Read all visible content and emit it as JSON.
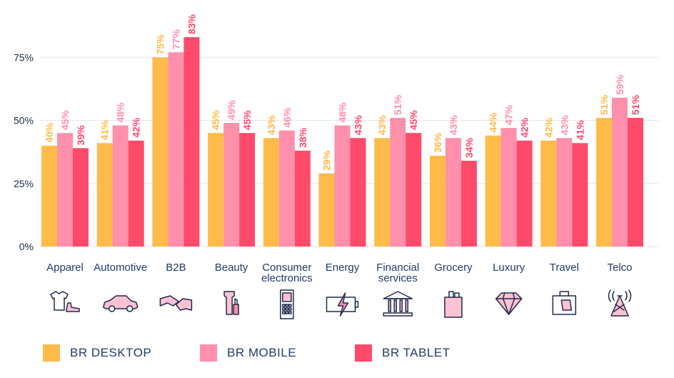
{
  "chart_data": {
    "type": "bar",
    "title": "",
    "xlabel": "",
    "ylabel": "",
    "ylim": [
      0,
      90
    ],
    "yticks": [
      0,
      25,
      50,
      75
    ],
    "ytick_labels": [
      "0%",
      "25%",
      "50%",
      "75%"
    ],
    "grid": true,
    "legend_position": "bottom",
    "categories": [
      "Apparel",
      "Automotive",
      "B2B",
      "Beauty",
      "Consumer electronics",
      "Energy",
      "Financial services",
      "Grocery",
      "Luxury",
      "Travel",
      "Telco"
    ],
    "category_lines": [
      [
        "Apparel"
      ],
      [
        "Automotive"
      ],
      [
        "B2B"
      ],
      [
        "Beauty"
      ],
      [
        "Consumer",
        "electronics"
      ],
      [
        "Energy"
      ],
      [
        "Financial",
        "services"
      ],
      [
        "Grocery"
      ],
      [
        "Luxury"
      ],
      [
        "Travel"
      ],
      [
        "Telco"
      ]
    ],
    "category_icons": [
      "apparel-icon",
      "car-icon",
      "handshake-icon",
      "cosmetics-icon",
      "phone-icon",
      "battery-icon",
      "bank-icon",
      "grocery-bag-icon",
      "diamond-icon",
      "suitcase-icon",
      "antenna-icon"
    ],
    "series": [
      {
        "name": "BR DESKTOP",
        "color": "#FFBB4A",
        "values": [
          40,
          41,
          75,
          45,
          43,
          29,
          43,
          36,
          44,
          42,
          51
        ],
        "labels": [
          "40%",
          "41%",
          "75%",
          "45%",
          "43%",
          "29%",
          "43%",
          "36%",
          "44%",
          "42%",
          "51%"
        ]
      },
      {
        "name": "BR MOBILE",
        "color": "#FF8FAB",
        "values": [
          45,
          48,
          77,
          49,
          46,
          48,
          51,
          43,
          47,
          43,
          59
        ],
        "labels": [
          "45%",
          "48%",
          "77%",
          "49%",
          "46%",
          "48%",
          "51%",
          "43%",
          "47%",
          "43%",
          "59%"
        ]
      },
      {
        "name": "BR TABLET",
        "color": "#FF4A6A",
        "values": [
          39,
          42,
          83,
          45,
          38,
          43,
          45,
          34,
          42,
          41,
          51
        ],
        "labels": [
          "39%",
          "42%",
          "83%",
          "45%",
          "38%",
          "43%",
          "45%",
          "34%",
          "42%",
          "41%",
          "51%"
        ]
      }
    ]
  },
  "colors": {
    "axis_text": "#1f2a4d",
    "category_text": "#223a6d",
    "gridline": "#e6e6ea"
  }
}
